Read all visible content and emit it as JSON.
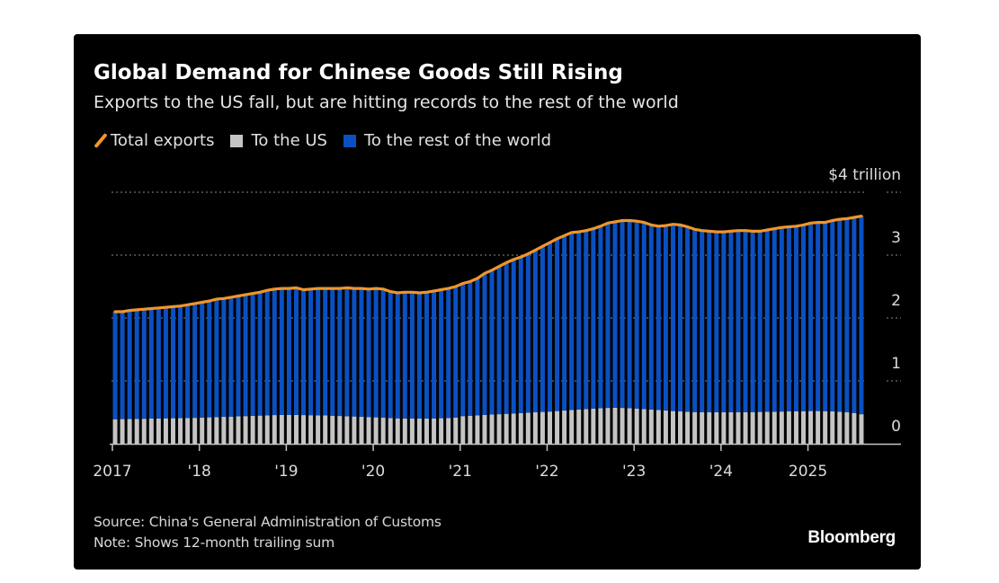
{
  "title": "Global Demand for Chinese Goods Still Rising",
  "subtitle": "Exports to the US fall, but are hitting records to the rest of the world",
  "legend": [
    {
      "label": "Total exports",
      "type": "line",
      "color": "#f0952b"
    },
    {
      "label": "To the US",
      "type": "bar",
      "color": "#c4c4c4"
    },
    {
      "label": "To the rest of the world",
      "type": "bar",
      "color": "#0a50c2"
    }
  ],
  "footer": {
    "source": "Source: China's General Administration of Customs",
    "note": "Note: Shows 12-month trailing sum"
  },
  "brand": "Bloomberg",
  "colors": {
    "background": "#000000",
    "total_line": "#f0952b",
    "us_bar": "#c4c4c4",
    "rest_bar": "#0a50c2",
    "gridline": "#8a8a8a",
    "axis": "#c4c4c4"
  },
  "chart_data": {
    "type": "bar",
    "stacked": true,
    "title": "Global Demand for Chinese Goods Still Rising",
    "subtitle": "Exports to the US fall, but are hitting records to the rest of the world",
    "xlabel": "",
    "ylabel": "$ trillion",
    "y_unit_label": "$4 trillion",
    "ylim": [
      0,
      4
    ],
    "yticks": [
      0,
      1,
      2,
      3,
      4
    ],
    "ytick_labels": [
      "0",
      "1",
      "2",
      "3",
      "$4 trillion"
    ],
    "grid": true,
    "legend_position": "top-left",
    "x_start": "2017-01",
    "x_end": "2025-08",
    "frequency": "monthly",
    "xtick_labels": [
      "2017",
      "'18",
      "'19",
      "'20",
      "'21",
      "'22",
      "'23",
      "'24",
      "2025"
    ],
    "xtick_years": [
      2017,
      2018,
      2019,
      2020,
      2021,
      2022,
      2023,
      2024,
      2025
    ],
    "series": [
      {
        "name": "To the US",
        "kind": "bar",
        "values": [
          0.39,
          0.392,
          0.394,
          0.396,
          0.398,
          0.4,
          0.402,
          0.404,
          0.406,
          0.408,
          0.41,
          0.412,
          0.416,
          0.42,
          0.424,
          0.428,
          0.432,
          0.436,
          0.44,
          0.444,
          0.448,
          0.452,
          0.456,
          0.458,
          0.46,
          0.458,
          0.456,
          0.454,
          0.452,
          0.45,
          0.446,
          0.442,
          0.438,
          0.434,
          0.43,
          0.426,
          0.42,
          0.414,
          0.408,
          0.404,
          0.402,
          0.4,
          0.4,
          0.401,
          0.403,
          0.406,
          0.41,
          0.416,
          0.44,
          0.446,
          0.452,
          0.458,
          0.464,
          0.47,
          0.476,
          0.482,
          0.488,
          0.494,
          0.5,
          0.506,
          0.512,
          0.52,
          0.528,
          0.536,
          0.544,
          0.552,
          0.56,
          0.566,
          0.57,
          0.572,
          0.57,
          0.566,
          0.56,
          0.552,
          0.544,
          0.536,
          0.528,
          0.52,
          0.514,
          0.508,
          0.504,
          0.5,
          0.5,
          0.5,
          0.5,
          0.5,
          0.5,
          0.502,
          0.504,
          0.506,
          0.508,
          0.51,
          0.512,
          0.514,
          0.516,
          0.518,
          0.52,
          0.52,
          0.518,
          0.514,
          0.508,
          0.5,
          0.49,
          0.47
        ]
      },
      {
        "name": "To the rest of the world",
        "kind": "bar",
        "derived": "total minus US"
      },
      {
        "name": "Total exports",
        "kind": "line",
        "values": [
          2.1,
          2.1,
          2.12,
          2.13,
          2.14,
          2.15,
          2.16,
          2.17,
          2.18,
          2.19,
          2.21,
          2.23,
          2.25,
          2.27,
          2.3,
          2.31,
          2.33,
          2.35,
          2.37,
          2.39,
          2.41,
          2.44,
          2.46,
          2.47,
          2.47,
          2.48,
          2.45,
          2.46,
          2.47,
          2.47,
          2.47,
          2.47,
          2.48,
          2.47,
          2.47,
          2.46,
          2.47,
          2.46,
          2.42,
          2.4,
          2.41,
          2.41,
          2.4,
          2.41,
          2.43,
          2.45,
          2.47,
          2.5,
          2.55,
          2.58,
          2.63,
          2.71,
          2.76,
          2.82,
          2.88,
          2.93,
          2.97,
          3.02,
          3.08,
          3.14,
          3.2,
          3.26,
          3.31,
          3.36,
          3.37,
          3.39,
          3.42,
          3.46,
          3.51,
          3.53,
          3.55,
          3.55,
          3.54,
          3.52,
          3.48,
          3.46,
          3.47,
          3.49,
          3.48,
          3.45,
          3.41,
          3.39,
          3.38,
          3.37,
          3.37,
          3.38,
          3.39,
          3.39,
          3.38,
          3.38,
          3.4,
          3.42,
          3.44,
          3.45,
          3.46,
          3.48,
          3.51,
          3.52,
          3.52,
          3.55,
          3.57,
          3.58,
          3.6,
          3.62
        ]
      }
    ]
  }
}
